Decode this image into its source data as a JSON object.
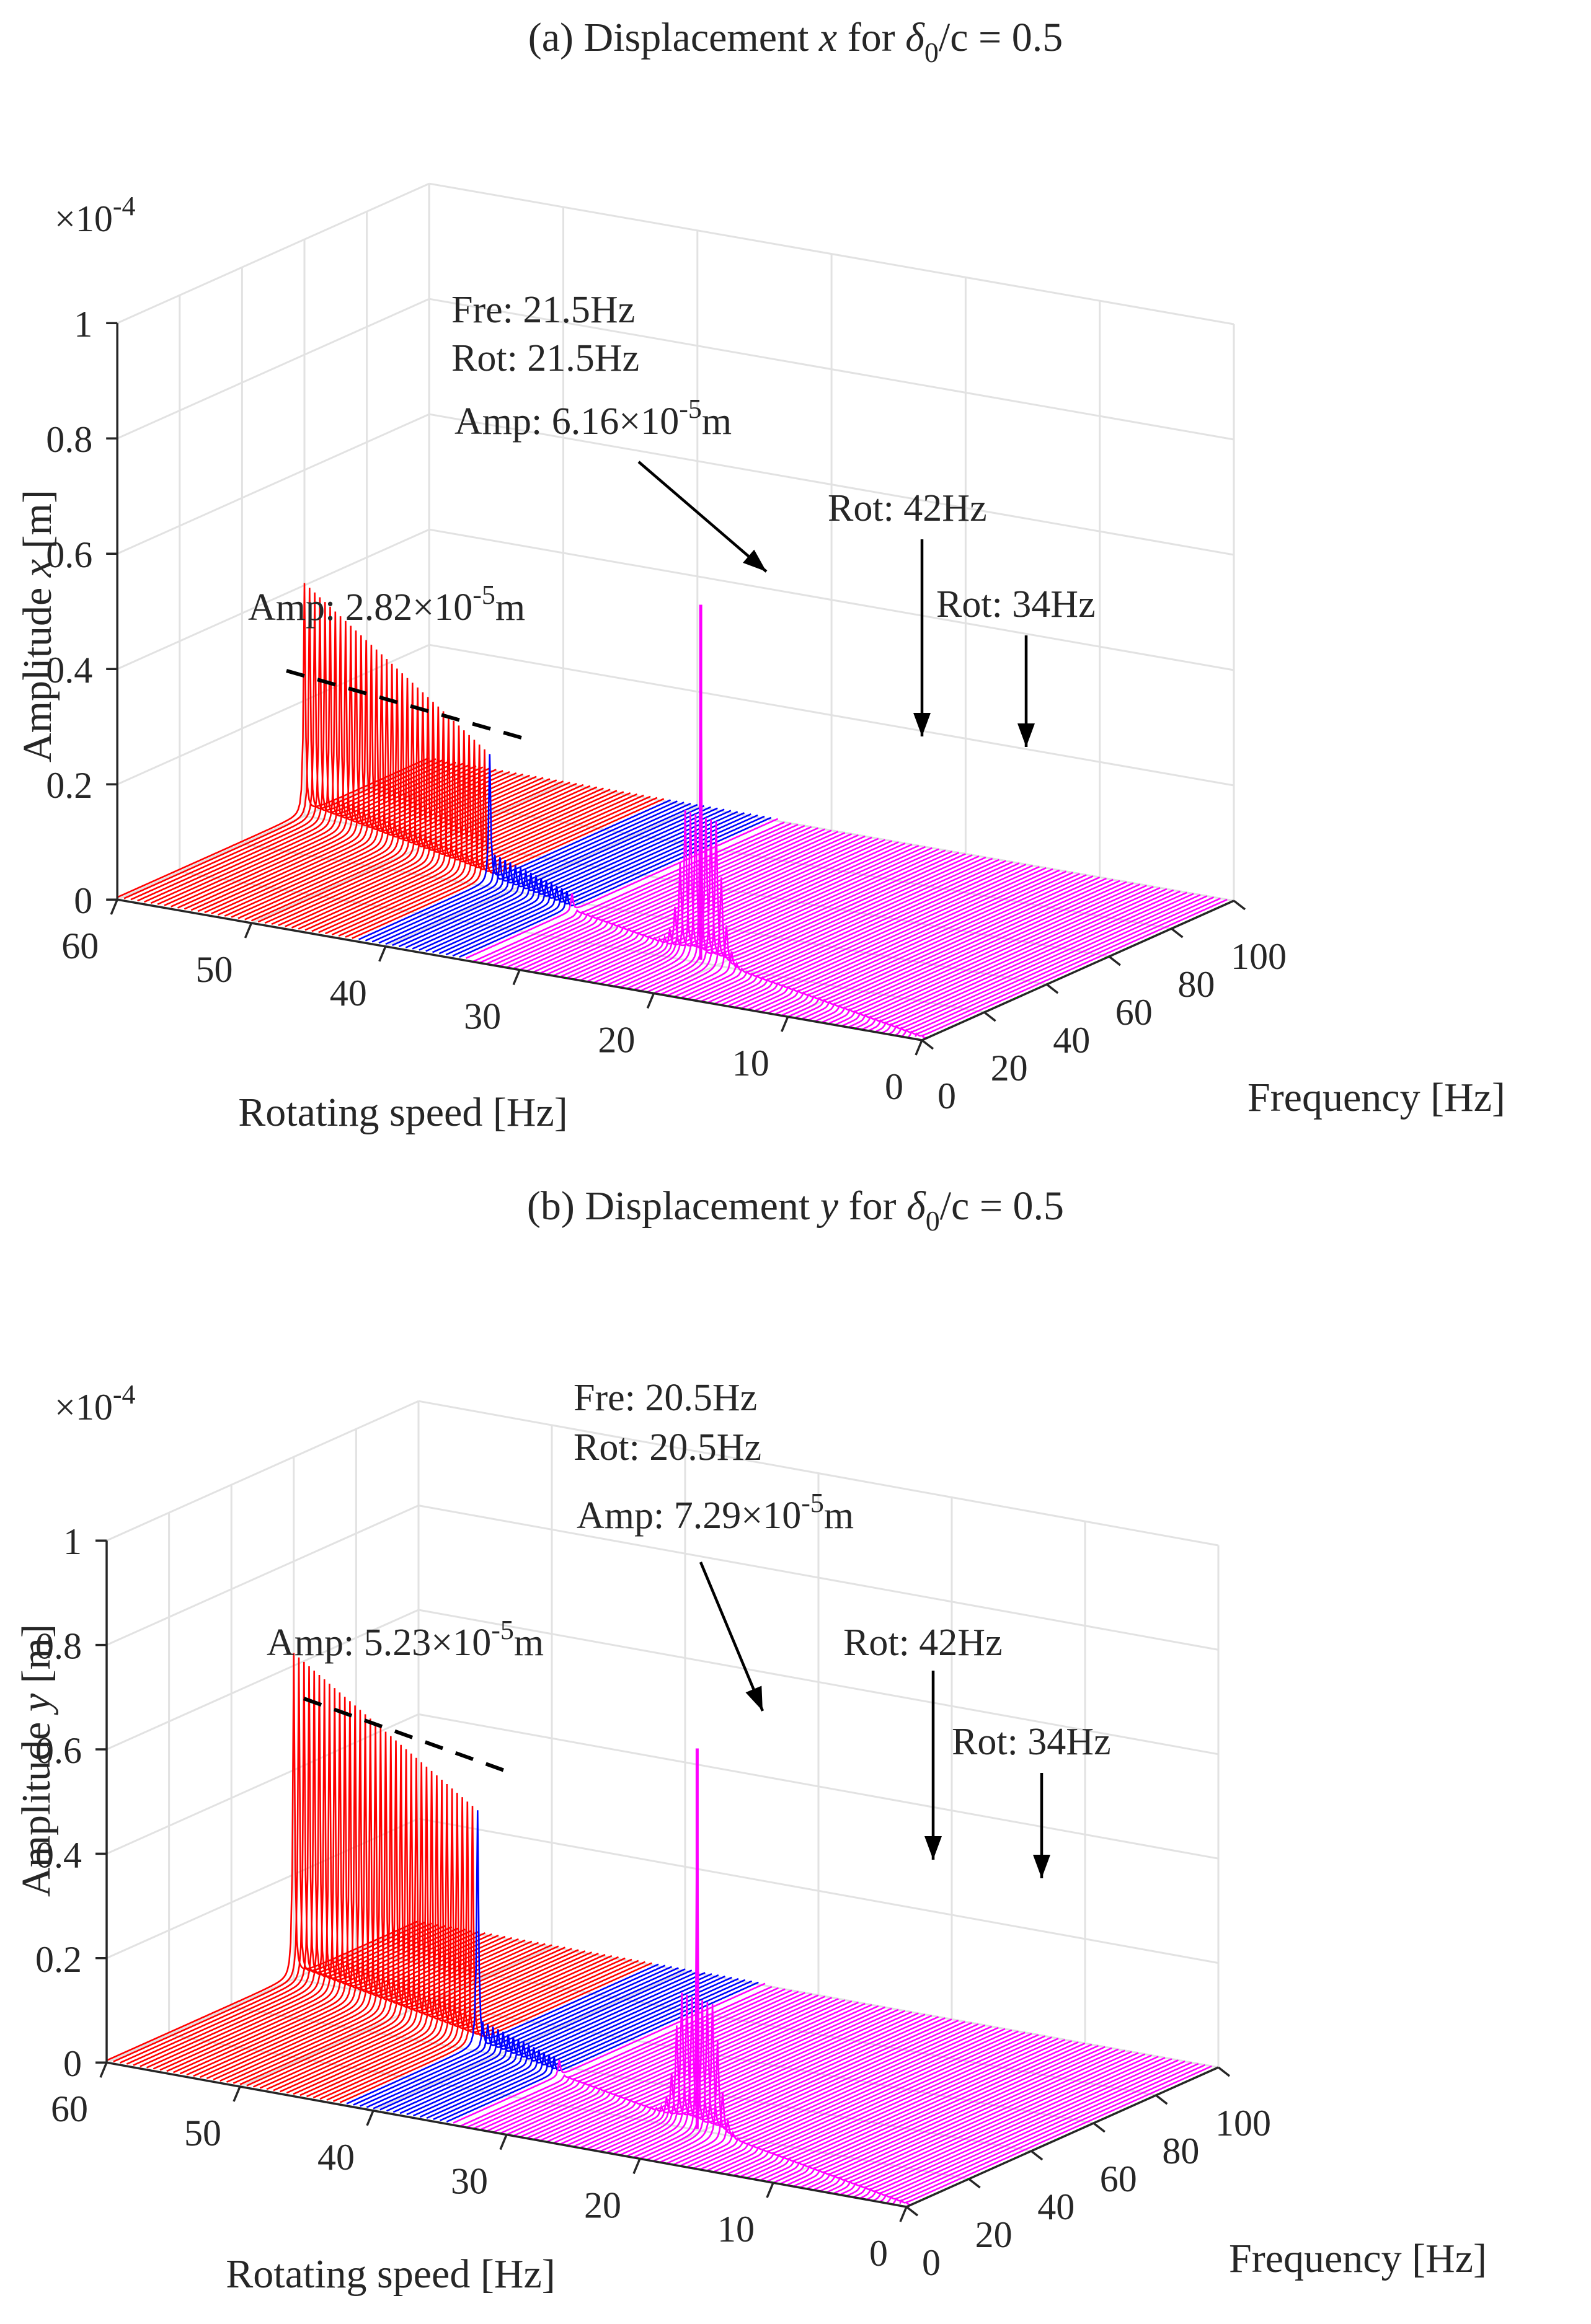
{
  "chart_data": [
    {
      "id": "panel-a",
      "type": "waterfall-3d",
      "title": {
        "prefix": "(a) Displacement ",
        "var": "x",
        "mid": " for ",
        "delta": "δ",
        "sub": "0",
        "suffix": "/c = 0.5"
      },
      "zlabel": {
        "prefix": "Amplitude ",
        "var": "x",
        "suffix": " [m]"
      },
      "xlabel": "Frequency [Hz]",
      "ylabel": "Rotating speed [Hz]",
      "exponent": {
        "base": "×10",
        "power": "-4"
      },
      "freq_ticks": [
        "0",
        "20",
        "40",
        "60",
        "80",
        "100"
      ],
      "rot_ticks": [
        "0",
        "10",
        "20",
        "30",
        "40",
        "50",
        "60"
      ],
      "amp_ticks": [
        "0",
        "0.2",
        "0.4",
        "0.6",
        "0.8",
        "1"
      ],
      "freq_range": [
        0,
        100
      ],
      "rot_range": [
        0,
        60
      ],
      "amp_range_e4": [
        0,
        1
      ],
      "bands": [
        {
          "from": 0,
          "to": 34,
          "color": "#ff00ff"
        },
        {
          "from": 34,
          "to": 42,
          "color": "#0000ff"
        },
        {
          "from": 42,
          "to": 60,
          "color": "#ff0000"
        }
      ],
      "resonance_peak": {
        "freq": 21.5,
        "rot": 21.5,
        "amp_e4": 0.616
      },
      "red_peaks": {
        "rot_from": 42,
        "rot_to": 60,
        "amp_low_e4": 0.22,
        "amp_high_e4": 0.4
      },
      "annotations": {
        "peak_fre": "Fre: 21.5Hz",
        "peak_rot": "Rot: 21.5Hz",
        "peak_amp": {
          "prefix": "Amp: 6.16×10",
          "power": "-5",
          "suffix": "m"
        },
        "red_amp": {
          "prefix": "Amp: 2.82×10",
          "power": "-5",
          "suffix": "m"
        },
        "rot42": "Rot: 42Hz",
        "rot34": "Rot: 34Hz"
      }
    },
    {
      "id": "panel-b",
      "type": "waterfall-3d",
      "title": {
        "prefix": "(b) Displacement ",
        "var": "y",
        "mid": " for ",
        "delta": "δ",
        "sub": "0",
        "suffix": "/c = 0.5"
      },
      "zlabel": {
        "prefix": "Amplitude ",
        "var": "y",
        "suffix": " [m]"
      },
      "xlabel": "Frequency [Hz]",
      "ylabel": "Rotating speed [Hz]",
      "exponent": {
        "base": "×10",
        "power": "-4"
      },
      "freq_ticks": [
        "0",
        "20",
        "40",
        "60",
        "80",
        "100"
      ],
      "rot_ticks": [
        "0",
        "10",
        "20",
        "30",
        "40",
        "50",
        "60"
      ],
      "amp_ticks": [
        "0",
        "0.2",
        "0.4",
        "0.6",
        "0.8",
        "1"
      ],
      "freq_range": [
        0,
        100
      ],
      "rot_range": [
        0,
        60
      ],
      "amp_range_e4": [
        0,
        1
      ],
      "bands": [
        {
          "from": 0,
          "to": 34,
          "color": "#ff00ff"
        },
        {
          "from": 34,
          "to": 42,
          "color": "#0000ff"
        },
        {
          "from": 42,
          "to": 60,
          "color": "#ff0000"
        }
      ],
      "resonance_peak": {
        "freq": 20.5,
        "rot": 20.5,
        "amp_e4": 0.729
      },
      "red_peaks": {
        "rot_from": 42,
        "rot_to": 60,
        "amp_low_e4": 0.45,
        "amp_high_e4": 0.62
      },
      "annotations": {
        "peak_fre": "Fre: 20.5Hz",
        "peak_rot": "Rot: 20.5Hz",
        "peak_amp": {
          "prefix": "Amp: 7.29×10",
          "power": "-5",
          "suffix": "m"
        },
        "red_amp": {
          "prefix": "Amp: 5.23×10",
          "power": "-5",
          "suffix": "m"
        },
        "rot42": "Rot: 42Hz",
        "rot34": "Rot: 34Hz"
      }
    }
  ]
}
